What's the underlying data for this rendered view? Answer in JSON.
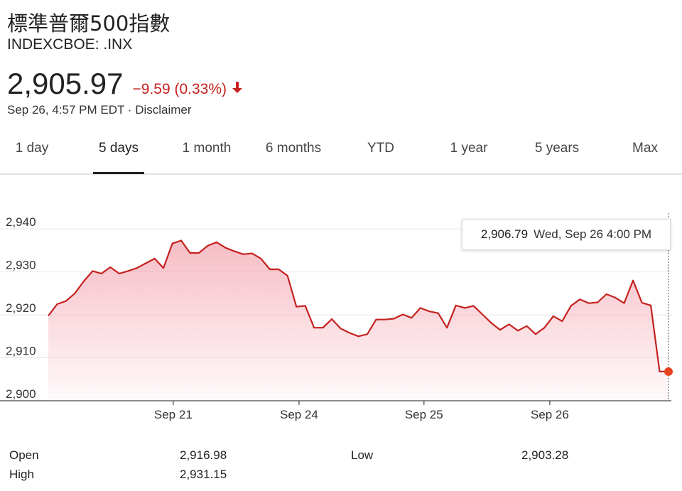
{
  "header": {
    "title": "標準普爾500指數",
    "ticker": "INDEXCBOE: .INX",
    "price": "2,905.97",
    "change": "−9.59 (0.33%)",
    "timestamp": "Sep 26, 4:57 PM EDT",
    "separator": "·",
    "disclaimer": "Disclaimer"
  },
  "tabs": [
    {
      "label": "1 day"
    },
    {
      "label": "5 days",
      "active": true
    },
    {
      "label": "1 month"
    },
    {
      "label": "6 months"
    },
    {
      "label": "YTD"
    },
    {
      "label": "1 year"
    },
    {
      "label": "5 years"
    },
    {
      "label": "Max"
    }
  ],
  "tooltip": {
    "value": "2,906.79",
    "time": "Wed, Sep 26 4:00 PM"
  },
  "stats": {
    "open_label": "Open",
    "open_value": "2,916.98",
    "high_label": "High",
    "high_value": "2,931.15",
    "low_label": "Low",
    "low_value": "2,903.28"
  },
  "colors": {
    "line": "#c5221f",
    "fill_top": "#f4a7b3",
    "grid": "#e8e8e8",
    "down": "#c5221f"
  },
  "chart_data": {
    "type": "area",
    "title": "",
    "xlabel": "",
    "ylabel": "",
    "ylim": [
      2900,
      2943
    ],
    "yticks": [
      2900,
      2910,
      2920,
      2930,
      2940
    ],
    "ytick_labels": [
      "2,900",
      "2,910",
      "2,920",
      "2,930",
      "2,940"
    ],
    "xticks": [
      {
        "label": "Sep 21",
        "x": 14.1
      },
      {
        "label": "Sep 24",
        "x": 28.3
      },
      {
        "label": "Sep 25",
        "x": 42.4
      },
      {
        "label": "Sep 26",
        "x": 56.6
      }
    ],
    "xlim": [
      0,
      70
    ],
    "grid": true,
    "series": [
      {
        "x": [
          0,
          1,
          2,
          3,
          4,
          5,
          6,
          7,
          8,
          9,
          10,
          11,
          12,
          13,
          14,
          15,
          16,
          17,
          18,
          19,
          20,
          21,
          22,
          23,
          24,
          25,
          26,
          27,
          28,
          29,
          30,
          31,
          32,
          33,
          34,
          35,
          36,
          37,
          38,
          39,
          40,
          41,
          42,
          43,
          44,
          45,
          46,
          47,
          48,
          49,
          50,
          51,
          52,
          53,
          54,
          55,
          56,
          57,
          58,
          59,
          60,
          61,
          62,
          63,
          64,
          65,
          66,
          67,
          68,
          69,
          70
        ],
        "values": [
          2919.8,
          2922.5,
          2923.2,
          2925.0,
          2927.8,
          2930.2,
          2929.6,
          2931.1,
          2929.6,
          2930.2,
          2930.9,
          2932.0,
          2933.1,
          2930.9,
          2936.6,
          2937.3,
          2934.4,
          2934.4,
          2936.1,
          2936.9,
          2935.6,
          2934.8,
          2934.1,
          2934.3,
          2933.1,
          2930.6,
          2930.6,
          2929.1,
          2921.9,
          2922.1,
          2917.0,
          2917.0,
          2919.0,
          2916.8,
          2915.8,
          2915.0,
          2915.5,
          2918.9,
          2918.9,
          2919.1,
          2920.1,
          2919.3,
          2921.6,
          2920.8,
          2920.4,
          2917.0,
          2922.2,
          2921.6,
          2922.1,
          2920.1,
          2918.1,
          2916.5,
          2917.8,
          2916.3,
          2917.4,
          2915.5,
          2917.0,
          2919.7,
          2918.5,
          2922.1,
          2923.6,
          2922.7,
          2922.9,
          2924.8,
          2924.0,
          2922.7,
          2928.0,
          2922.8,
          2922.2,
          2906.8,
          2906.8
        ]
      }
    ],
    "last_point": {
      "x": 70,
      "value": 2906.79
    }
  }
}
